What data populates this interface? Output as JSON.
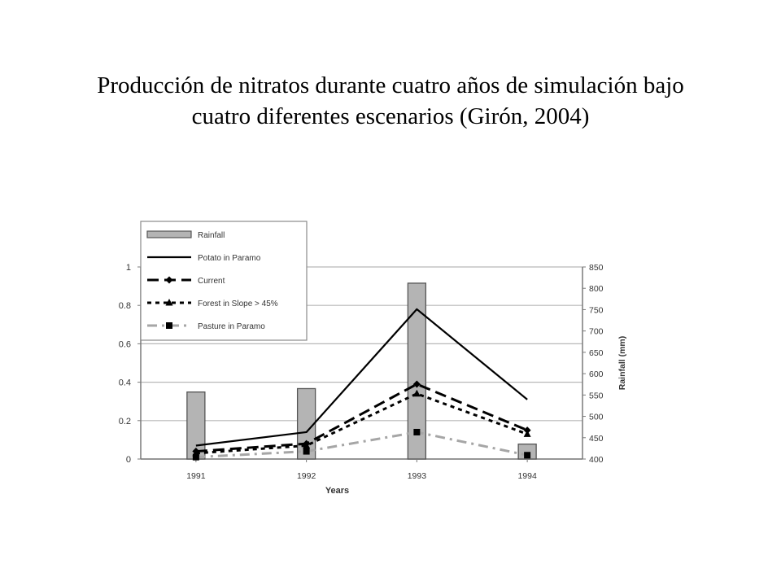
{
  "slide": {
    "title_line1": "Producción de nitratos durante cuatro años de simulación bajo",
    "title_line2": "cuatro diferentes escenarios (Girón, 2004)"
  },
  "chart_data": {
    "type": "bar",
    "categories": [
      "1991",
      "1992",
      "1993",
      "1994"
    ],
    "xlabel": "Years",
    "ylabel": "",
    "y2label": "Rainfall (mm)",
    "ylim": [
      0,
      1
    ],
    "y2lim": [
      400,
      850
    ],
    "yticks": [
      "0",
      "0.2",
      "0.4",
      "0.6",
      "0.8",
      "1"
    ],
    "y2ticks": [
      "400",
      "450",
      "500",
      "550",
      "600",
      "650",
      "700",
      "750",
      "800",
      "850"
    ],
    "grid": true,
    "legend": "top-left",
    "series": [
      {
        "name": "Rainfall",
        "kind": "bar",
        "axis": "right",
        "color": "#b4b4b4",
        "values": [
          557,
          565,
          812,
          435
        ]
      },
      {
        "name": "Potato in Paramo",
        "kind": "line",
        "style": "solid",
        "color": "#000000",
        "values": [
          0.07,
          0.14,
          0.78,
          0.31
        ]
      },
      {
        "name": "Current",
        "kind": "line",
        "style": "dashed",
        "marker": "diamond",
        "color": "#000000",
        "values": [
          0.04,
          0.08,
          0.39,
          0.15
        ]
      },
      {
        "name": "Forest in Slope > 45%",
        "kind": "line",
        "style": "dotted",
        "marker": "triangle",
        "color": "#000000",
        "values": [
          0.03,
          0.07,
          0.34,
          0.13
        ]
      },
      {
        "name": "Pasture in Paramo",
        "kind": "line",
        "style": "dashdot",
        "marker": "square",
        "color": "#a6a6a6",
        "values": [
          0.01,
          0.04,
          0.14,
          0.02
        ]
      }
    ]
  }
}
